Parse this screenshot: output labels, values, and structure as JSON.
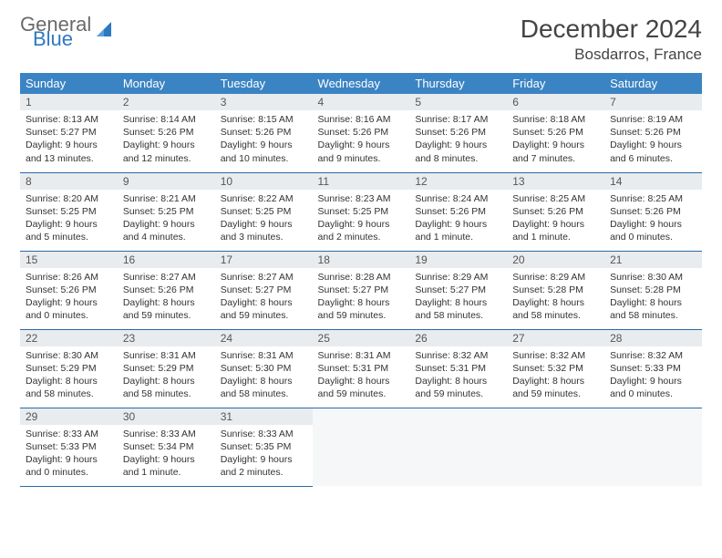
{
  "brand": {
    "general": "General",
    "blue": "Blue",
    "sail_color": "#2f78c3"
  },
  "title": "December 2024",
  "location": "Bosdarros, France",
  "colors": {
    "header_bg": "#3b84c4",
    "header_text": "#ffffff",
    "daynum_bg": "#e9ecef",
    "row_border": "#2a6aa8",
    "text": "#333333",
    "title_text": "#444444"
  },
  "weekdays": [
    "Sunday",
    "Monday",
    "Tuesday",
    "Wednesday",
    "Thursday",
    "Friday",
    "Saturday"
  ],
  "weeks": [
    [
      {
        "n": "1",
        "sr": "8:13 AM",
        "ss": "5:27 PM",
        "dl": "9 hours and 13 minutes."
      },
      {
        "n": "2",
        "sr": "8:14 AM",
        "ss": "5:26 PM",
        "dl": "9 hours and 12 minutes."
      },
      {
        "n": "3",
        "sr": "8:15 AM",
        "ss": "5:26 PM",
        "dl": "9 hours and 10 minutes."
      },
      {
        "n": "4",
        "sr": "8:16 AM",
        "ss": "5:26 PM",
        "dl": "9 hours and 9 minutes."
      },
      {
        "n": "5",
        "sr": "8:17 AM",
        "ss": "5:26 PM",
        "dl": "9 hours and 8 minutes."
      },
      {
        "n": "6",
        "sr": "8:18 AM",
        "ss": "5:26 PM",
        "dl": "9 hours and 7 minutes."
      },
      {
        "n": "7",
        "sr": "8:19 AM",
        "ss": "5:26 PM",
        "dl": "9 hours and 6 minutes."
      }
    ],
    [
      {
        "n": "8",
        "sr": "8:20 AM",
        "ss": "5:25 PM",
        "dl": "9 hours and 5 minutes."
      },
      {
        "n": "9",
        "sr": "8:21 AM",
        "ss": "5:25 PM",
        "dl": "9 hours and 4 minutes."
      },
      {
        "n": "10",
        "sr": "8:22 AM",
        "ss": "5:25 PM",
        "dl": "9 hours and 3 minutes."
      },
      {
        "n": "11",
        "sr": "8:23 AM",
        "ss": "5:25 PM",
        "dl": "9 hours and 2 minutes."
      },
      {
        "n": "12",
        "sr": "8:24 AM",
        "ss": "5:26 PM",
        "dl": "9 hours and 1 minute."
      },
      {
        "n": "13",
        "sr": "8:25 AM",
        "ss": "5:26 PM",
        "dl": "9 hours and 1 minute."
      },
      {
        "n": "14",
        "sr": "8:25 AM",
        "ss": "5:26 PM",
        "dl": "9 hours and 0 minutes."
      }
    ],
    [
      {
        "n": "15",
        "sr": "8:26 AM",
        "ss": "5:26 PM",
        "dl": "9 hours and 0 minutes."
      },
      {
        "n": "16",
        "sr": "8:27 AM",
        "ss": "5:26 PM",
        "dl": "8 hours and 59 minutes."
      },
      {
        "n": "17",
        "sr": "8:27 AM",
        "ss": "5:27 PM",
        "dl": "8 hours and 59 minutes."
      },
      {
        "n": "18",
        "sr": "8:28 AM",
        "ss": "5:27 PM",
        "dl": "8 hours and 59 minutes."
      },
      {
        "n": "19",
        "sr": "8:29 AM",
        "ss": "5:27 PM",
        "dl": "8 hours and 58 minutes."
      },
      {
        "n": "20",
        "sr": "8:29 AM",
        "ss": "5:28 PM",
        "dl": "8 hours and 58 minutes."
      },
      {
        "n": "21",
        "sr": "8:30 AM",
        "ss": "5:28 PM",
        "dl": "8 hours and 58 minutes."
      }
    ],
    [
      {
        "n": "22",
        "sr": "8:30 AM",
        "ss": "5:29 PM",
        "dl": "8 hours and 58 minutes."
      },
      {
        "n": "23",
        "sr": "8:31 AM",
        "ss": "5:29 PM",
        "dl": "8 hours and 58 minutes."
      },
      {
        "n": "24",
        "sr": "8:31 AM",
        "ss": "5:30 PM",
        "dl": "8 hours and 58 minutes."
      },
      {
        "n": "25",
        "sr": "8:31 AM",
        "ss": "5:31 PM",
        "dl": "8 hours and 59 minutes."
      },
      {
        "n": "26",
        "sr": "8:32 AM",
        "ss": "5:31 PM",
        "dl": "8 hours and 59 minutes."
      },
      {
        "n": "27",
        "sr": "8:32 AM",
        "ss": "5:32 PM",
        "dl": "8 hours and 59 minutes."
      },
      {
        "n": "28",
        "sr": "8:32 AM",
        "ss": "5:33 PM",
        "dl": "9 hours and 0 minutes."
      }
    ],
    [
      {
        "n": "29",
        "sr": "8:33 AM",
        "ss": "5:33 PM",
        "dl": "9 hours and 0 minutes."
      },
      {
        "n": "30",
        "sr": "8:33 AM",
        "ss": "5:34 PM",
        "dl": "9 hours and 1 minute."
      },
      {
        "n": "31",
        "sr": "8:33 AM",
        "ss": "5:35 PM",
        "dl": "9 hours and 2 minutes."
      },
      null,
      null,
      null,
      null
    ]
  ],
  "labels": {
    "sunrise": "Sunrise:",
    "sunset": "Sunset:",
    "daylight": "Daylight:"
  }
}
